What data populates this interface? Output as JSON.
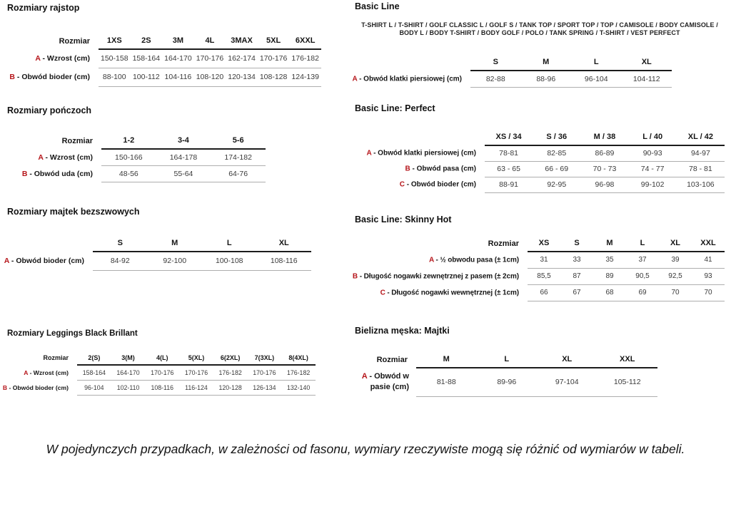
{
  "accent_color": "#b6161b",
  "header_rule_color": "#1c1c1c",
  "row_rule_color": "#aeaeae",
  "footnote": {
    "text": "W pojedynczych przypadkach, w zależności od fasonu, wymiary rzeczywiste mogą się różnić od wymiarów w tabeli."
  },
  "left_tables": [
    {
      "name": "rozmiary-rajstop",
      "title": "Rozmiary rajstop",
      "subtitle": null,
      "corner_label": "Rozmiar",
      "columns": [
        "1XS",
        "2S",
        "3M",
        "4L",
        "3MAX",
        "5XL",
        "6XXL"
      ],
      "rows": [
        {
          "letter": "A",
          "label": "- Wzrost (cm)",
          "values": [
            "150-158",
            "158-164",
            "164-170",
            "170-176",
            "162-174",
            "170-176",
            "176-182"
          ]
        },
        {
          "letter": "B",
          "label": "- Obwód bioder (cm)",
          "values": [
            "88-100",
            "100-112",
            "104-116",
            "108-120",
            "120-134",
            "108-128",
            "124-139"
          ]
        }
      ]
    },
    {
      "name": "rozmiary-ponczoch",
      "title": "Rozmiary pończoch",
      "subtitle": null,
      "corner_label": "Rozmiar",
      "columns": [
        "1-2",
        "3-4",
        "5-6"
      ],
      "rows": [
        {
          "letter": "A",
          "label": "- Wzrost (cm)",
          "values": [
            "150-166",
            "164-178",
            "174-182"
          ]
        },
        {
          "letter": "B",
          "label": "- Obwód uda (cm)",
          "values": [
            "48-56",
            "55-64",
            "64-76"
          ]
        }
      ]
    },
    {
      "name": "rozmiary-majtek-bezszwowych",
      "title": "Rozmiary majtek bezszwowych",
      "subtitle": null,
      "corner_label": null,
      "columns": [
        "S",
        "M",
        "L",
        "XL"
      ],
      "rows": [
        {
          "letter": "A",
          "label": "- Obwód bioder (cm)",
          "values": [
            "84-92",
            "92-100",
            "100-108",
            "108-116"
          ]
        }
      ]
    },
    {
      "name": "rozmiary-leggings-black-brillant",
      "title": "Rozmiary Leggings Black Brillant",
      "subtitle": null,
      "corner_label": "Rozmiar",
      "columns": [
        "2(S)",
        "3(M)",
        "4(L)",
        "5(XL)",
        "6(2XL)",
        "7(3XL)",
        "8(4XL)"
      ],
      "rows": [
        {
          "letter": "A",
          "label": "- Wzrost (cm)",
          "values": [
            "158-164",
            "164-170",
            "170-176",
            "170-176",
            "176-182",
            "170-176",
            "176-182"
          ]
        },
        {
          "letter": "B",
          "label": "- Obwód bioder (cm)",
          "values": [
            "96-104",
            "102-110",
            "108-116",
            "116-124",
            "120-128",
            "126-134",
            "132-140"
          ]
        }
      ]
    }
  ],
  "right_tables": [
    {
      "name": "basic-line",
      "title": "Basic Line",
      "subtitle": "T-SHIRT L / T-SHIRT / GOLF CLASSIC L / GOLF S / TANK TOP / SPORT TOP / TOP / CAMISOLE / BODY CAMISOLE / BODY L / BODY T-SHIRT / BODY GOLF / POLO / TANK SPRING / T-SHIRT / VEST PERFECT",
      "corner_label": null,
      "columns": [
        "S",
        "M",
        "L",
        "XL"
      ],
      "rows": [
        {
          "letter": "A",
          "label": "- Obwód klatki piersiowej (cm)",
          "values": [
            "82-88",
            "88-96",
            "96-104",
            "104-112"
          ]
        }
      ]
    },
    {
      "name": "basic-line-perfect",
      "title": "Basic Line: Perfect",
      "subtitle": null,
      "corner_label": null,
      "columns": [
        "XS / 34",
        "S / 36",
        "M / 38",
        "L / 40",
        "XL / 42"
      ],
      "rows": [
        {
          "letter": "A",
          "label": "- Obwód klatki piersiowej (cm)",
          "values": [
            "78-81",
            "82-85",
            "86-89",
            "90-93",
            "94-97"
          ]
        },
        {
          "letter": "B",
          "label": "- Obwód pasa (cm)",
          "values": [
            "63 - 65",
            "66 - 69",
            "70 - 73",
            "74 - 77",
            "78 - 81"
          ]
        },
        {
          "letter": "C",
          "label": "- Obwód bioder (cm)",
          "values": [
            "88-91",
            "92-95",
            "96-98",
            "99-102",
            "103-106"
          ]
        }
      ]
    },
    {
      "name": "basic-line-skinny-hot",
      "title": "Basic Line: Skinny Hot",
      "subtitle": null,
      "corner_label": "Rozmiar",
      "columns": [
        "XS",
        "S",
        "M",
        "L",
        "XL",
        "XXL"
      ],
      "rows": [
        {
          "letter": "A",
          "label": "- ½ obwodu pasa (± 1cm)",
          "values": [
            "31",
            "33",
            "35",
            "37",
            "39",
            "41"
          ]
        },
        {
          "letter": "B",
          "label": "- Długość nogawki zewnętrznej z pasem (± 2cm)",
          "values": [
            "85,5",
            "87",
            "89",
            "90,5",
            "92,5",
            "93"
          ]
        },
        {
          "letter": "C",
          "label": "- Długość nogawki wewnętrznej (± 1cm)",
          "values": [
            "66",
            "67",
            "68",
            "69",
            "70",
            "70"
          ]
        }
      ]
    },
    {
      "name": "bielizna-meska-majtki",
      "title": "Bielizna męska: Majtki",
      "subtitle": null,
      "corner_label": "Rozmiar",
      "columns": [
        "M",
        "L",
        "XL",
        "XXL"
      ],
      "rows": [
        {
          "letter": "A",
          "label": "- Obwód w pasie (cm)",
          "values": [
            "81-88",
            "89-96",
            "97-104",
            "105-112"
          ]
        }
      ]
    }
  ]
}
